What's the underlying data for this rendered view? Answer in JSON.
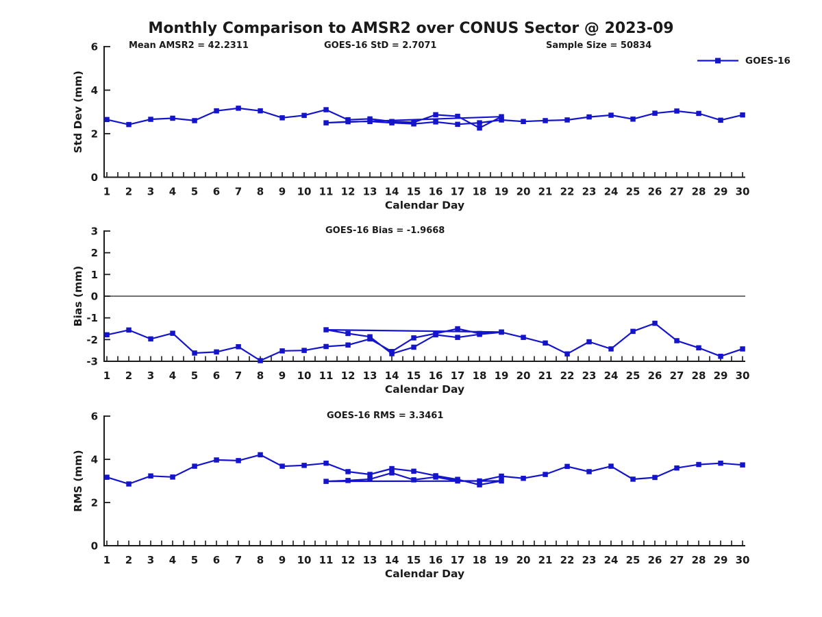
{
  "title": "Monthly Comparison to AMSR2 over CONUS Sector @ 2023-09",
  "legend": {
    "label": "GOES-16",
    "color": "#1414cc",
    "position": "top-right",
    "marker": "square"
  },
  "colors": {
    "series_blue": "#1414cc",
    "axis_text": "#1a1a1a"
  },
  "chart_data": [
    {
      "type": "line",
      "name": "std-dev-plot",
      "annotations": [
        "Mean AMSR2 = 42.2311",
        "GOES-16 StD = 2.7071",
        "Sample Size = 50834"
      ],
      "xlabel": "Calendar Day",
      "ylabel": "Std Dev (mm)",
      "ylim": [
        0,
        6
      ],
      "yticks": [
        0,
        2,
        4,
        6
      ],
      "xticks": [
        1,
        2,
        3,
        4,
        5,
        6,
        7,
        8,
        9,
        10,
        11,
        12,
        13,
        14,
        15,
        16,
        17,
        18,
        19,
        20,
        21,
        22,
        23,
        24,
        25,
        26,
        27,
        28,
        29,
        30
      ],
      "minor_tick_step": 0.5,
      "grid": false,
      "zero_line": false,
      "series": [
        {
          "name": "GOES-16",
          "color": "#1414cc",
          "marker": "square",
          "points": [
            [
              1,
              2.65
            ],
            [
              2,
              2.42
            ],
            [
              3,
              2.66
            ],
            [
              4,
              2.71
            ],
            [
              5,
              2.6
            ],
            [
              6,
              3.05
            ],
            [
              7,
              3.17
            ],
            [
              8,
              3.05
            ],
            [
              9,
              2.73
            ],
            [
              10,
              2.84
            ],
            [
              11,
              3.1
            ],
            [
              12,
              2.64
            ],
            [
              13,
              2.68
            ],
            [
              14,
              2.56
            ],
            [
              15,
              2.52
            ],
            [
              16,
              2.87
            ],
            [
              17,
              2.8
            ],
            [
              18,
              2.26
            ],
            [
              19,
              2.78
            ],
            [
              11,
              2.5
            ],
            [
              12,
              2.55
            ],
            [
              13,
              2.56
            ],
            [
              14,
              2.5
            ],
            [
              15,
              2.45
            ],
            [
              16,
              2.54
            ],
            [
              17,
              2.43
            ],
            [
              18,
              2.5
            ],
            [
              19,
              2.63
            ],
            [
              20,
              2.56
            ],
            [
              21,
              2.6
            ],
            [
              22,
              2.63
            ],
            [
              23,
              2.77
            ],
            [
              24,
              2.85
            ],
            [
              25,
              2.67
            ],
            [
              26,
              2.94
            ],
            [
              27,
              3.04
            ],
            [
              28,
              2.93
            ],
            [
              29,
              2.62
            ],
            [
              30,
              2.86
            ]
          ]
        }
      ]
    },
    {
      "type": "line",
      "name": "bias-plot",
      "annotations": [
        "GOES-16 Bias = -1.9668"
      ],
      "xlabel": "Calendar Day",
      "ylabel": "Bias (mm)",
      "ylim": [
        -3,
        3
      ],
      "yticks": [
        -3,
        -2,
        -1,
        0,
        1,
        2,
        3
      ],
      "xticks": [
        1,
        2,
        3,
        4,
        5,
        6,
        7,
        8,
        9,
        10,
        11,
        12,
        13,
        14,
        15,
        16,
        17,
        18,
        19,
        20,
        21,
        22,
        23,
        24,
        25,
        26,
        27,
        28,
        29,
        30
      ],
      "minor_tick_step": 0.5,
      "grid": false,
      "zero_line": true,
      "series": [
        {
          "name": "GOES-16",
          "color": "#1414cc",
          "marker": "square",
          "points": [
            [
              1,
              -1.78
            ],
            [
              2,
              -1.56
            ],
            [
              3,
              -1.97
            ],
            [
              4,
              -1.71
            ],
            [
              5,
              -2.62
            ],
            [
              6,
              -2.57
            ],
            [
              7,
              -2.33
            ],
            [
              8,
              -2.97
            ],
            [
              9,
              -2.52
            ],
            [
              10,
              -2.5
            ],
            [
              11,
              -2.32
            ],
            [
              12,
              -2.25
            ],
            [
              13,
              -1.97
            ],
            [
              14,
              -2.55
            ],
            [
              15,
              -1.92
            ],
            [
              16,
              -1.72
            ],
            [
              17,
              -1.5
            ],
            [
              18,
              -1.72
            ],
            [
              19,
              -1.65
            ],
            [
              11,
              -1.55
            ],
            [
              12,
              -1.72
            ],
            [
              13,
              -1.87
            ],
            [
              14,
              -2.65
            ],
            [
              15,
              -2.35
            ],
            [
              16,
              -1.78
            ],
            [
              17,
              -1.9
            ],
            [
              18,
              -1.76
            ],
            [
              19,
              -1.66
            ],
            [
              20,
              -1.9
            ],
            [
              21,
              -2.16
            ],
            [
              22,
              -2.66
            ],
            [
              23,
              -2.1
            ],
            [
              24,
              -2.43
            ],
            [
              25,
              -1.62
            ],
            [
              26,
              -1.25
            ],
            [
              27,
              -2.05
            ],
            [
              28,
              -2.38
            ],
            [
              29,
              -2.77
            ],
            [
              30,
              -2.43
            ]
          ]
        }
      ]
    },
    {
      "type": "line",
      "name": "rms-plot",
      "annotations": [
        "GOES-16 RMS = 3.3461"
      ],
      "xlabel": "Calendar Day",
      "ylabel": "RMS (mm)",
      "ylim": [
        0,
        6
      ],
      "yticks": [
        0,
        2,
        4,
        6
      ],
      "xticks": [
        1,
        2,
        3,
        4,
        5,
        6,
        7,
        8,
        9,
        10,
        11,
        12,
        13,
        14,
        15,
        16,
        17,
        18,
        19,
        20,
        21,
        22,
        23,
        24,
        25,
        26,
        27,
        28,
        29,
        30
      ],
      "minor_tick_step": 0.5,
      "grid": false,
      "zero_line": false,
      "series": [
        {
          "name": "GOES-16",
          "color": "#1414cc",
          "marker": "square",
          "points": [
            [
              1,
              3.17
            ],
            [
              2,
              2.86
            ],
            [
              3,
              3.23
            ],
            [
              4,
              3.18
            ],
            [
              5,
              3.68
            ],
            [
              6,
              3.97
            ],
            [
              7,
              3.94
            ],
            [
              8,
              4.21
            ],
            [
              9,
              3.68
            ],
            [
              10,
              3.72
            ],
            [
              11,
              3.82
            ],
            [
              12,
              3.43
            ],
            [
              13,
              3.3
            ],
            [
              14,
              3.57
            ],
            [
              15,
              3.45
            ],
            [
              16,
              3.24
            ],
            [
              17,
              3.07
            ],
            [
              18,
              2.82
            ],
            [
              19,
              3.0
            ],
            [
              11,
              2.98
            ],
            [
              12,
              3.02
            ],
            [
              13,
              3.08
            ],
            [
              14,
              3.37
            ],
            [
              15,
              3.05
            ],
            [
              16,
              3.18
            ],
            [
              17,
              3.0
            ],
            [
              18,
              3.0
            ],
            [
              19,
              3.22
            ],
            [
              20,
              3.12
            ],
            [
              21,
              3.3
            ],
            [
              22,
              3.67
            ],
            [
              23,
              3.43
            ],
            [
              24,
              3.68
            ],
            [
              25,
              3.08
            ],
            [
              26,
              3.16
            ],
            [
              27,
              3.6
            ],
            [
              28,
              3.76
            ],
            [
              29,
              3.82
            ],
            [
              30,
              3.74
            ]
          ]
        }
      ]
    }
  ]
}
